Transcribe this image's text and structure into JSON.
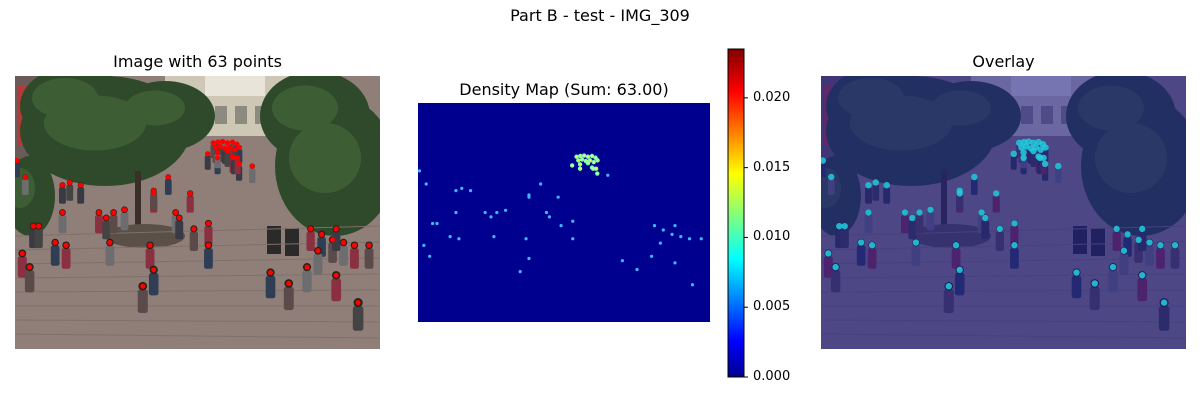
{
  "figure": {
    "suptitle": "Part B - test - IMG_309"
  },
  "panels": [
    {
      "title": "Image with 63 points",
      "content": "crowd photo with red point annotations"
    },
    {
      "title": "Density Map (Sum: 63.00)",
      "content": "jet colormap density map"
    },
    {
      "title": "Overlay",
      "content": "crowd photo with density map overlay"
    }
  ],
  "colorbar": {
    "ticks": [
      "0.000",
      "0.005",
      "0.010",
      "0.015",
      "0.020"
    ],
    "tick_values": [
      0.0,
      0.005,
      0.01,
      0.015,
      0.02
    ],
    "vmin": 0.0,
    "vmax": 0.0235,
    "colormap": "jet"
  },
  "colors": {
    "density_background": "#00008f",
    "annotation_point": "#ff0000"
  },
  "points_count": 63,
  "density_sum": 63.0,
  "point_positions_normalized": [
    [
      0.543,
      0.245
    ],
    [
      0.556,
      0.242
    ],
    [
      0.569,
      0.24
    ],
    [
      0.582,
      0.245
    ],
    [
      0.596,
      0.242
    ],
    [
      0.608,
      0.25
    ],
    [
      0.549,
      0.262
    ],
    [
      0.562,
      0.258
    ],
    [
      0.575,
      0.265
    ],
    [
      0.589,
      0.262
    ],
    [
      0.602,
      0.27
    ],
    [
      0.615,
      0.262
    ],
    [
      0.528,
      0.285
    ],
    [
      0.555,
      0.3
    ],
    [
      0.596,
      0.295
    ],
    [
      0.614,
      0.322
    ],
    [
      0.555,
      0.28
    ],
    [
      0.582,
      0.275
    ],
    [
      0.005,
      0.31
    ],
    [
      0.028,
      0.37
    ],
    [
      0.13,
      0.4
    ],
    [
      0.15,
      0.39
    ],
    [
      0.18,
      0.4
    ],
    [
      0.13,
      0.5
    ],
    [
      0.05,
      0.55
    ],
    [
      0.065,
      0.55
    ],
    [
      0.02,
      0.65
    ],
    [
      0.11,
      0.61
    ],
    [
      0.23,
      0.5
    ],
    [
      0.25,
      0.52
    ],
    [
      0.27,
      0.5
    ],
    [
      0.3,
      0.49
    ],
    [
      0.38,
      0.43
    ],
    [
      0.42,
      0.37
    ],
    [
      0.44,
      0.5
    ],
    [
      0.45,
      0.52
    ],
    [
      0.49,
      0.56
    ],
    [
      0.53,
      0.54
    ],
    [
      0.53,
      0.62
    ],
    [
      0.26,
      0.61
    ],
    [
      0.37,
      0.62
    ],
    [
      0.38,
      0.71
    ],
    [
      0.35,
      0.77
    ],
    [
      0.48,
      0.43
    ],
    [
      0.6,
      0.3
    ],
    [
      0.65,
      0.33
    ],
    [
      0.81,
      0.56
    ],
    [
      0.84,
      0.58
    ],
    [
      0.87,
      0.6
    ],
    [
      0.9,
      0.61
    ],
    [
      0.93,
      0.62
    ],
    [
      0.97,
      0.62
    ],
    [
      0.88,
      0.56
    ],
    [
      0.83,
      0.64
    ],
    [
      0.8,
      0.7
    ],
    [
      0.88,
      0.73
    ],
    [
      0.7,
      0.72
    ],
    [
      0.75,
      0.76
    ],
    [
      0.94,
      0.83
    ],
    [
      0.14,
      0.62
    ],
    [
      0.38,
      0.42
    ],
    [
      0.04,
      0.7
    ],
    [
      0.61,
      0.3
    ]
  ]
}
